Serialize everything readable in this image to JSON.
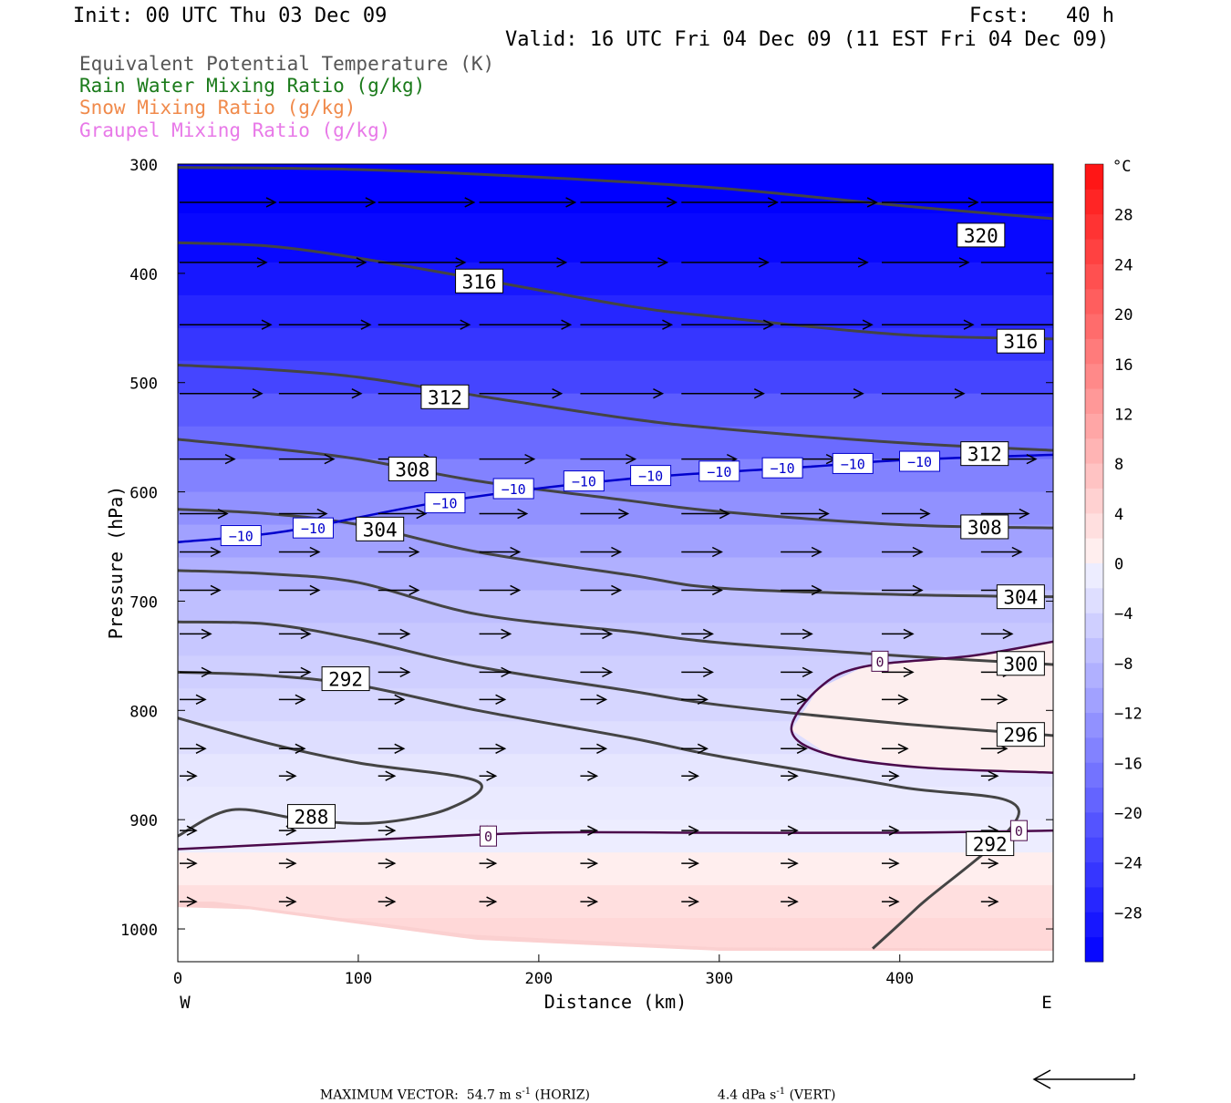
{
  "header": {
    "init": "Init: 00 UTC Thu 03 Dec 09",
    "fcst": "Fcst:   40 h",
    "valid": "Valid: 16 UTC Fri 04 Dec 09 (11 EST Fri 04 Dec 09)"
  },
  "legend": [
    {
      "label": "Equivalent Potential Temperature (K)",
      "color": "#555555"
    },
    {
      "label": "Rain Water Mixing Ratio (g/kg)",
      "color": "#1a7a1a"
    },
    {
      "label": "Snow Mixing Ratio (g/kg)",
      "color": "#f08a4b"
    },
    {
      "label": "Graupel Mixing Ratio (g/kg)",
      "color": "#e879e8"
    }
  ],
  "chart_data": {
    "type": "heatmap",
    "title": "",
    "xlabel": "Distance (km)",
    "ylabel": "Pressure (hPa)",
    "xlim": [
      0,
      485
    ],
    "ylim": [
      1030,
      300
    ],
    "x_ticks": [
      "0",
      "100",
      "200",
      "300",
      "400"
    ],
    "y_ticks": [
      "300",
      "400",
      "500",
      "600",
      "700",
      "800",
      "900",
      "1000"
    ],
    "x_end_labels": {
      "left": "W",
      "right": "E"
    },
    "colorbar": {
      "unit": "°C",
      "levels": [
        -32,
        -30,
        -28,
        -26,
        -24,
        -22,
        -20,
        -18,
        -16,
        -14,
        -12,
        -10,
        -8,
        -6,
        -4,
        -2,
        0,
        2,
        4,
        6,
        8,
        10,
        12,
        14,
        16,
        18,
        20,
        22,
        24,
        26,
        28,
        30,
        32
      ],
      "tick_labels": [
        "28",
        "24",
        "20",
        "16",
        "12",
        "8",
        "4",
        "0",
        "−4",
        "−8",
        "−12",
        "−16",
        "−20",
        "−24",
        "−28"
      ],
      "tick_values": [
        28,
        24,
        20,
        16,
        12,
        8,
        4,
        0,
        -4,
        -8,
        -12,
        -16,
        -20,
        -24,
        -28
      ]
    },
    "theta_e_contours": [
      {
        "value": 320,
        "label": "320",
        "label_at": [
          445,
          365
        ],
        "points": [
          [
            0,
            303
          ],
          [
            100,
            305
          ],
          [
            200,
            312
          ],
          [
            300,
            322
          ],
          [
            400,
            338
          ],
          [
            485,
            350
          ]
        ]
      },
      {
        "value": 316,
        "label": "316",
        "label_at": [
          467,
          462
        ],
        "points": [
          [
            0,
            372
          ],
          [
            50,
            375
          ],
          [
            100,
            386
          ],
          [
            166,
            405
          ],
          [
            250,
            430
          ],
          [
            300,
            440
          ],
          [
            400,
            456
          ],
          [
            485,
            460
          ]
        ]
      },
      {
        "value": 316,
        "label": "316",
        "label_at": [
          167,
          407
        ],
        "points": []
      },
      {
        "value": 312,
        "label": "312",
        "label_at": [
          148,
          513
        ],
        "points": [
          [
            0,
            484
          ],
          [
            50,
            488
          ],
          [
            100,
            495
          ],
          [
            166,
            512
          ],
          [
            250,
            533
          ],
          [
            300,
            542
          ],
          [
            400,
            555
          ],
          [
            485,
            562
          ]
        ]
      },
      {
        "value": 312,
        "label": "312",
        "label_at": [
          447,
          565
        ],
        "points": []
      },
      {
        "value": 308,
        "label": "308",
        "label_at": [
          130,
          579
        ],
        "points": [
          [
            0,
            552
          ],
          [
            50,
            560
          ],
          [
            100,
            570
          ],
          [
            166,
            590
          ],
          [
            250,
            608
          ],
          [
            300,
            618
          ],
          [
            400,
            630
          ],
          [
            485,
            633
          ]
        ]
      },
      {
        "value": 308,
        "label": "308",
        "label_at": [
          447,
          632
        ],
        "points": []
      },
      {
        "value": 304,
        "label": "304",
        "label_at": [
          112,
          634
        ],
        "points": [
          [
            0,
            616
          ],
          [
            50,
            620
          ],
          [
            100,
            630
          ],
          [
            166,
            655
          ],
          [
            250,
            676
          ],
          [
            300,
            688
          ],
          [
            400,
            694
          ],
          [
            485,
            696
          ]
        ]
      },
      {
        "value": 304,
        "label": "304",
        "label_at": [
          467,
          696
        ],
        "points": []
      },
      {
        "value": 300,
        "label": "300",
        "label_at": [
          467,
          757
        ],
        "points": [
          [
            0,
            672
          ],
          [
            50,
            675
          ],
          [
            100,
            683
          ],
          [
            166,
            712
          ],
          [
            250,
            728
          ],
          [
            300,
            738
          ],
          [
            400,
            750
          ],
          [
            485,
            758
          ]
        ]
      },
      {
        "value": 296,
        "label": "296",
        "label_at": [
          467,
          822
        ],
        "points": [
          [
            0,
            719
          ],
          [
            50,
            721
          ],
          [
            100,
            735
          ],
          [
            166,
            760
          ],
          [
            250,
            782
          ],
          [
            300,
            795
          ],
          [
            400,
            812
          ],
          [
            485,
            823
          ]
        ]
      },
      {
        "value": 292,
        "label": "292",
        "label_at": [
          93,
          771
        ],
        "points": [
          [
            0,
            765
          ],
          [
            50,
            768
          ],
          [
            100,
            777
          ],
          [
            166,
            800
          ],
          [
            250,
            825
          ],
          [
            300,
            842
          ],
          [
            400,
            870
          ],
          [
            466,
            892
          ],
          [
            410,
            980
          ],
          [
            385,
            1018
          ]
        ]
      },
      {
        "value": 292,
        "label": "292",
        "label_at": [
          450,
          922
        ],
        "points": []
      },
      {
        "value": 288,
        "label": "288",
        "label_at": [
          74,
          897
        ],
        "points": [
          [
            0,
            807
          ],
          [
            50,
            830
          ],
          [
            100,
            848
          ],
          [
            166,
            865
          ],
          [
            150,
            890
          ],
          [
            110,
            903
          ],
          [
            70,
            900
          ],
          [
            30,
            891
          ],
          [
            0,
            915
          ]
        ]
      }
    ],
    "temperature_contours": [
      {
        "value": -10,
        "label": "−10",
        "color": "#0000cc",
        "points": [
          [
            0,
            646
          ],
          [
            60,
            636
          ],
          [
            150,
            608
          ],
          [
            250,
            588
          ],
          [
            350,
            577
          ],
          [
            400,
            571
          ],
          [
            485,
            566
          ]
        ]
      },
      {
        "value": 0,
        "label": "0",
        "color": "#4b0a4b",
        "points": [
          [
            0,
            927
          ],
          [
            100,
            919
          ],
          [
            200,
            912
          ],
          [
            300,
            912
          ],
          [
            400,
            912
          ],
          [
            485,
            910
          ]
        ]
      },
      {
        "value": 0,
        "label": "0",
        "color": "#4b0a4b",
        "points": [
          [
            485,
            737
          ],
          [
            440,
            750
          ],
          [
            380,
            760
          ],
          [
            355,
            780
          ],
          [
            340,
            818
          ],
          [
            360,
            840
          ],
          [
            410,
            852
          ],
          [
            485,
            857
          ]
        ]
      }
    ],
    "wind_vectors_note": "Westerly winds throughout; strongest aloft near 350 hPa.",
    "maximum_vector": {
      "label": "MAXIMUM VECTOR:",
      "horiz": "54.7 m s",
      "horiz_unit": "(HORIZ)",
      "vert": "4.4 dPa s",
      "vert_unit": "(VERT)",
      "exp": "-1"
    }
  }
}
